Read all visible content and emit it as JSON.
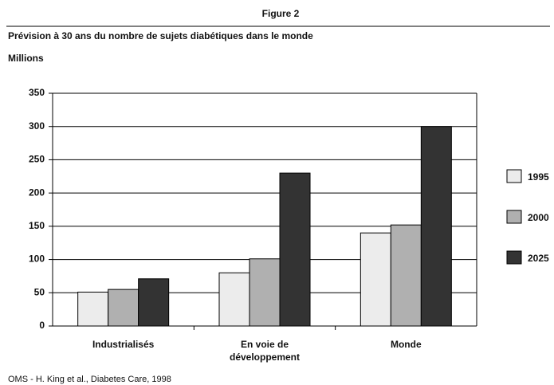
{
  "chart_data": {
    "type": "bar",
    "title": "Figure 2",
    "subtitle": "Prévision à 30 ans du nombre de sujets diabétiques dans le monde",
    "y_label": "Millions",
    "source": "OMS - H. King et al., Diabetes Care, 1998",
    "categories": [
      "Industrialisés",
      "En voie de\ndéveloppement",
      "Monde"
    ],
    "series": [
      {
        "name": "1995",
        "color": "#ececec",
        "values": [
          51,
          80,
          140
        ]
      },
      {
        "name": "2000",
        "color": "#b0b0b0",
        "values": [
          55,
          101,
          152
        ]
      },
      {
        "name": "2025",
        "color": "#333333",
        "values": [
          71,
          230,
          300
        ]
      }
    ],
    "ylim": [
      0,
      350
    ],
    "yticks": [
      0,
      50,
      100,
      150,
      200,
      250,
      300,
      350
    ],
    "grid": true,
    "legend": "right"
  }
}
